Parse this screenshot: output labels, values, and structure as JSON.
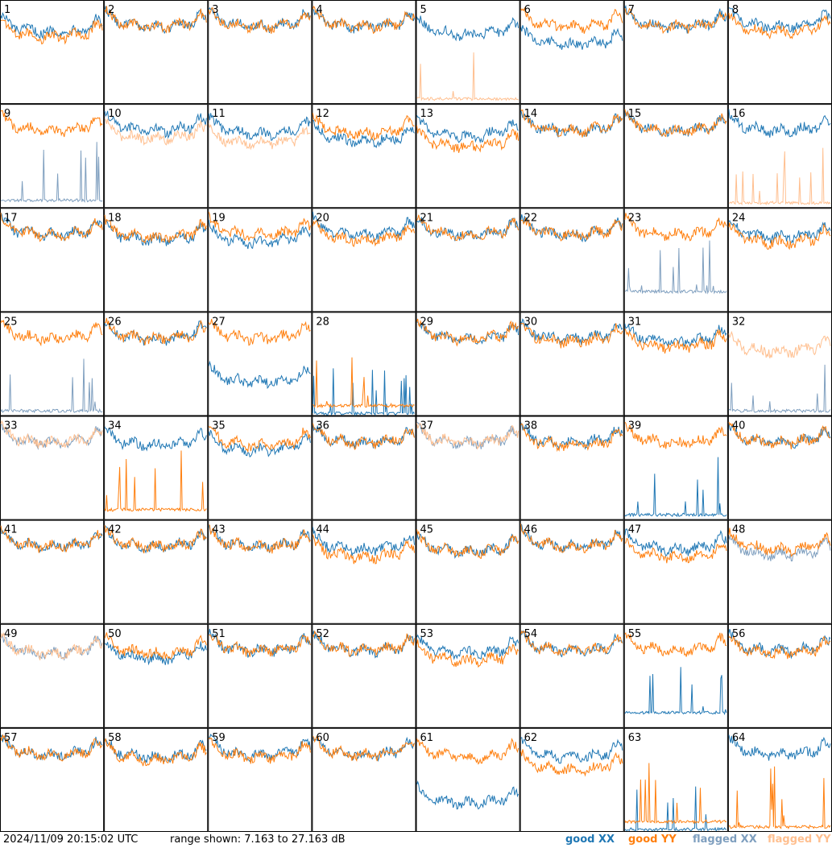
{
  "footer": {
    "timestamp": "2024/11/09 20:15:02 UTC",
    "range": "range shown: 7.163 to 27.163 dB"
  },
  "legend": [
    {
      "label": "good XX",
      "color": "#1f77b4"
    },
    {
      "label": "good YY",
      "color": "#ff7f0e"
    },
    {
      "label": "flagged XX",
      "color": "#7f9fbf"
    },
    {
      "label": "flagged YY",
      "color": "#ffbf8f"
    }
  ],
  "chart_data": {
    "type": "line",
    "layout": "8x8 small multiples, one panel per antenna",
    "y_range_db": [
      7.163,
      27.163
    ],
    "x_axis": "frequency channel (unlabeled)",
    "series_kinds": [
      "good XX",
      "good YY",
      "flagged XX",
      "flagged YY"
    ],
    "panels": [
      {
        "id": 1,
        "xx": {
          "status": "good",
          "mean_db": 22.5
        },
        "yy": {
          "status": "good",
          "mean_db": 21.5
        }
      },
      {
        "id": 2,
        "xx": {
          "status": "good",
          "mean_db": 23.5
        },
        "yy": {
          "status": "good",
          "mean_db": 23.5
        }
      },
      {
        "id": 3,
        "xx": {
          "status": "good",
          "mean_db": 23.5
        },
        "yy": {
          "status": "good",
          "mean_db": 23.5
        }
      },
      {
        "id": 4,
        "xx": {
          "status": "good",
          "mean_db": 23.5
        },
        "yy": {
          "status": "good",
          "mean_db": 23.5
        }
      },
      {
        "id": 5,
        "xx": {
          "status": "good",
          "mean_db": 22.0
        },
        "yy": {
          "status": "flagged",
          "mean_db": 8.0
        }
      },
      {
        "id": 6,
        "xx": {
          "status": "good",
          "mean_db": 20.0
        },
        "yy": {
          "status": "good",
          "mean_db": 23.5
        }
      },
      {
        "id": 7,
        "xx": {
          "status": "good",
          "mean_db": 23.5
        },
        "yy": {
          "status": "good",
          "mean_db": 23.5
        }
      },
      {
        "id": 8,
        "xx": {
          "status": "good",
          "mean_db": 23.5
        },
        "yy": {
          "status": "good",
          "mean_db": 22.5
        }
      },
      {
        "id": 9,
        "xx": {
          "status": "flagged",
          "mean_db": 8.5
        },
        "yy": {
          "status": "good",
          "mean_db": 23.5
        }
      },
      {
        "id": 10,
        "xx": {
          "status": "good",
          "mean_db": 23.5
        },
        "yy": {
          "status": "flagged",
          "mean_db": 22.0
        }
      },
      {
        "id": 11,
        "xx": {
          "status": "good",
          "mean_db": 23.0
        },
        "yy": {
          "status": "flagged",
          "mean_db": 21.0
        }
      },
      {
        "id": 12,
        "xx": {
          "status": "good",
          "mean_db": 21.5
        },
        "yy": {
          "status": "good",
          "mean_db": 23.0
        }
      },
      {
        "id": 13,
        "xx": {
          "status": "good",
          "mean_db": 22.5
        },
        "yy": {
          "status": "good",
          "mean_db": 20.5
        }
      },
      {
        "id": 14,
        "xx": {
          "status": "good",
          "mean_db": 23.5
        },
        "yy": {
          "status": "good",
          "mean_db": 23.5
        }
      },
      {
        "id": 15,
        "xx": {
          "status": "good",
          "mean_db": 23.5
        },
        "yy": {
          "status": "good",
          "mean_db": 23.5
        }
      },
      {
        "id": 16,
        "xx": {
          "status": "good",
          "mean_db": 23.5
        },
        "yy": {
          "status": "flagged",
          "mean_db": 8.0
        }
      },
      {
        "id": 17,
        "xx": {
          "status": "good",
          "mean_db": 23.5
        },
        "yy": {
          "status": "good",
          "mean_db": 23.5
        }
      },
      {
        "id": 18,
        "xx": {
          "status": "good",
          "mean_db": 22.5
        },
        "yy": {
          "status": "good",
          "mean_db": 23.0
        }
      },
      {
        "id": 19,
        "xx": {
          "status": "good",
          "mean_db": 22.0
        },
        "yy": {
          "status": "good",
          "mean_db": 23.5
        }
      },
      {
        "id": 20,
        "xx": {
          "status": "good",
          "mean_db": 23.5
        },
        "yy": {
          "status": "good",
          "mean_db": 22.5
        }
      },
      {
        "id": 21,
        "xx": {
          "status": "good",
          "mean_db": 23.5
        },
        "yy": {
          "status": "good",
          "mean_db": 23.5
        }
      },
      {
        "id": 22,
        "xx": {
          "status": "good",
          "mean_db": 23.5
        },
        "yy": {
          "status": "good",
          "mean_db": 23.5
        }
      },
      {
        "id": 23,
        "xx": {
          "status": "flagged",
          "mean_db": 11.0
        },
        "yy": {
          "status": "good",
          "mean_db": 23.5
        }
      },
      {
        "id": 24,
        "xx": {
          "status": "good",
          "mean_db": 23.0
        },
        "yy": {
          "status": "good",
          "mean_db": 22.0
        }
      },
      {
        "id": 25,
        "xx": {
          "status": "flagged",
          "mean_db": 8.0
        },
        "yy": {
          "status": "good",
          "mean_db": 23.5
        }
      },
      {
        "id": 26,
        "xx": {
          "status": "good",
          "mean_db": 23.5
        },
        "yy": {
          "status": "good",
          "mean_db": 23.5
        }
      },
      {
        "id": 27,
        "xx": {
          "status": "good",
          "mean_db": 15.0
        },
        "yy": {
          "status": "good",
          "mean_db": 23.5
        }
      },
      {
        "id": 28,
        "xx": {
          "status": "good",
          "mean_db": 7.5
        },
        "yy": {
          "status": "good",
          "mean_db": 9.0
        }
      },
      {
        "id": 29,
        "xx": {
          "status": "good",
          "mean_db": 23.5
        },
        "yy": {
          "status": "good",
          "mean_db": 23.5
        }
      },
      {
        "id": 30,
        "xx": {
          "status": "good",
          "mean_db": 23.5
        },
        "yy": {
          "status": "good",
          "mean_db": 23.0
        }
      },
      {
        "id": 31,
        "xx": {
          "status": "good",
          "mean_db": 23.0
        },
        "yy": {
          "status": "good",
          "mean_db": 22.0
        }
      },
      {
        "id": 32,
        "xx": {
          "status": "flagged",
          "mean_db": 8.0
        },
        "yy": {
          "status": "flagged",
          "mean_db": 21.0
        }
      },
      {
        "id": 33,
        "xx": {
          "status": "flagged",
          "mean_db": 23.5
        },
        "yy": {
          "status": "flagged",
          "mean_db": 23.5
        }
      },
      {
        "id": 34,
        "xx": {
          "status": "good",
          "mean_db": 23.0
        },
        "yy": {
          "status": "good",
          "mean_db": 9.0
        }
      },
      {
        "id": 35,
        "xx": {
          "status": "good",
          "mean_db": 22.0
        },
        "yy": {
          "status": "good",
          "mean_db": 23.0
        }
      },
      {
        "id": 36,
        "xx": {
          "status": "good",
          "mean_db": 23.5
        },
        "yy": {
          "status": "good",
          "mean_db": 23.5
        }
      },
      {
        "id": 37,
        "xx": {
          "status": "flagged",
          "mean_db": 23.5
        },
        "yy": {
          "status": "flagged",
          "mean_db": 23.5
        }
      },
      {
        "id": 38,
        "xx": {
          "status": "good",
          "mean_db": 23.5
        },
        "yy": {
          "status": "good",
          "mean_db": 23.0
        }
      },
      {
        "id": 39,
        "xx": {
          "status": "good",
          "mean_db": 8.0
        },
        "yy": {
          "status": "good",
          "mean_db": 23.5
        }
      },
      {
        "id": 40,
        "xx": {
          "status": "good",
          "mean_db": 23.5
        },
        "yy": {
          "status": "good",
          "mean_db": 23.5
        }
      },
      {
        "id": 41,
        "xx": {
          "status": "good",
          "mean_db": 23.5
        },
        "yy": {
          "status": "good",
          "mean_db": 23.5
        }
      },
      {
        "id": 42,
        "xx": {
          "status": "good",
          "mean_db": 23.5
        },
        "yy": {
          "status": "good",
          "mean_db": 23.5
        }
      },
      {
        "id": 43,
        "xx": {
          "status": "good",
          "mean_db": 23.5
        },
        "yy": {
          "status": "good",
          "mean_db": 23.5
        }
      },
      {
        "id": 44,
        "xx": {
          "status": "good",
          "mean_db": 23.0
        },
        "yy": {
          "status": "good",
          "mean_db": 21.5
        }
      },
      {
        "id": 45,
        "xx": {
          "status": "good",
          "mean_db": 22.5
        },
        "yy": {
          "status": "good",
          "mean_db": 22.5
        }
      },
      {
        "id": 46,
        "xx": {
          "status": "good",
          "mean_db": 23.5
        },
        "yy": {
          "status": "good",
          "mean_db": 23.5
        }
      },
      {
        "id": 47,
        "xx": {
          "status": "good",
          "mean_db": 23.0
        },
        "yy": {
          "status": "good",
          "mean_db": 21.5
        }
      },
      {
        "id": 48,
        "xx": {
          "status": "flagged",
          "mean_db": 22.0
        },
        "yy": {
          "status": "good",
          "mean_db": 23.0
        }
      },
      {
        "id": 49,
        "xx": {
          "status": "flagged",
          "mean_db": 23.0
        },
        "yy": {
          "status": "flagged",
          "mean_db": 23.0
        }
      },
      {
        "id": 50,
        "xx": {
          "status": "good",
          "mean_db": 22.0
        },
        "yy": {
          "status": "good",
          "mean_db": 23.0
        }
      },
      {
        "id": 51,
        "xx": {
          "status": "good",
          "mean_db": 23.5
        },
        "yy": {
          "status": "good",
          "mean_db": 23.5
        }
      },
      {
        "id": 52,
        "xx": {
          "status": "good",
          "mean_db": 23.5
        },
        "yy": {
          "status": "good",
          "mean_db": 23.5
        }
      },
      {
        "id": 53,
        "xx": {
          "status": "good",
          "mean_db": 23.0
        },
        "yy": {
          "status": "good",
          "mean_db": 21.5
        }
      },
      {
        "id": 54,
        "xx": {
          "status": "good",
          "mean_db": 23.5
        },
        "yy": {
          "status": "good",
          "mean_db": 23.5
        }
      },
      {
        "id": 55,
        "xx": {
          "status": "good",
          "mean_db": 10.0
        },
        "yy": {
          "status": "good",
          "mean_db": 23.5
        }
      },
      {
        "id": 56,
        "xx": {
          "status": "good",
          "mean_db": 23.5
        },
        "yy": {
          "status": "good",
          "mean_db": 23.0
        }
      },
      {
        "id": 57,
        "xx": {
          "status": "good",
          "mean_db": 23.5
        },
        "yy": {
          "status": "good",
          "mean_db": 23.5
        }
      },
      {
        "id": 58,
        "xx": {
          "status": "good",
          "mean_db": 23.0
        },
        "yy": {
          "status": "good",
          "mean_db": 22.5
        }
      },
      {
        "id": 59,
        "xx": {
          "status": "good",
          "mean_db": 23.5
        },
        "yy": {
          "status": "good",
          "mean_db": 23.0
        }
      },
      {
        "id": 60,
        "xx": {
          "status": "good",
          "mean_db": 23.5
        },
        "yy": {
          "status": "good",
          "mean_db": 23.5
        }
      },
      {
        "id": 61,
        "xx": {
          "status": "good",
          "mean_db": 14.0
        },
        "yy": {
          "status": "good",
          "mean_db": 23.0
        }
      },
      {
        "id": 62,
        "xx": {
          "status": "good",
          "mean_db": 23.0
        },
        "yy": {
          "status": "good",
          "mean_db": 20.5
        }
      },
      {
        "id": 63,
        "xx": {
          "status": "good",
          "mean_db": 7.5
        },
        "yy": {
          "status": "good",
          "mean_db": 9.0
        }
      },
      {
        "id": 64,
        "xx": {
          "status": "good",
          "mean_db": 23.5
        },
        "yy": {
          "status": "good",
          "mean_db": 8.0
        }
      }
    ]
  }
}
